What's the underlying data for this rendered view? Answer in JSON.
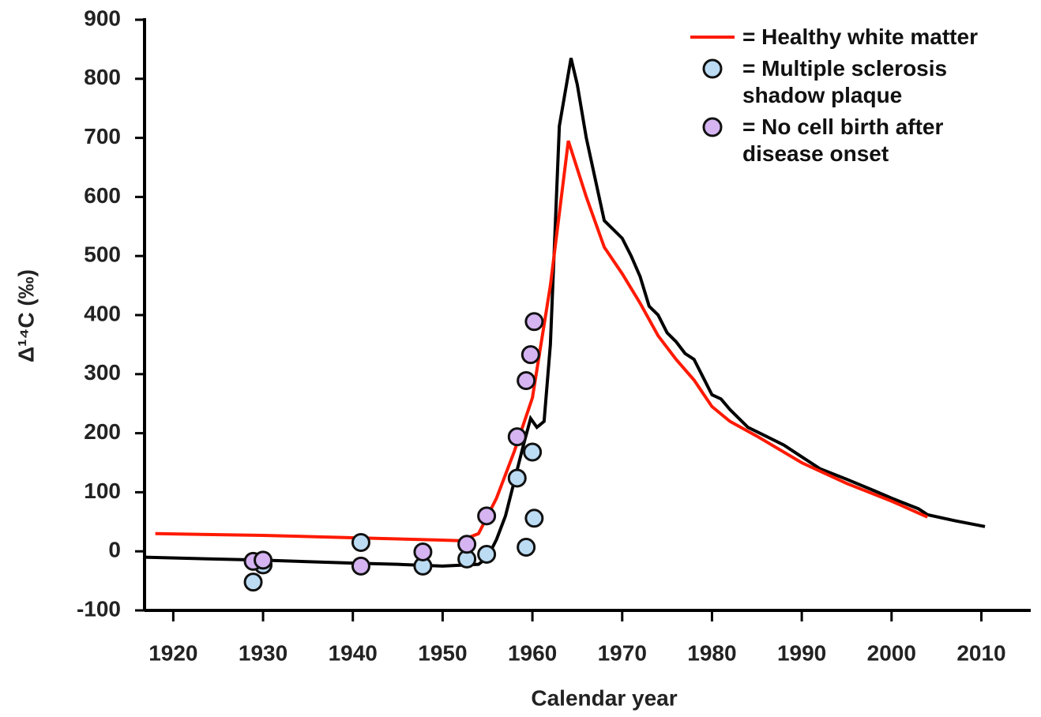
{
  "chart_data": {
    "type": "line",
    "xlabel": "Calendar year",
    "ylabel": "Δ¹⁴C (‰)",
    "xlim": [
      1916.8,
      2015.5
    ],
    "ylim": [
      -100,
      900
    ],
    "xticks": [
      1920,
      1930,
      1940,
      1950,
      1960,
      1970,
      1980,
      1990,
      2000,
      2010
    ],
    "yticks": [
      -100,
      0,
      100,
      200,
      300,
      400,
      500,
      600,
      700,
      800,
      900
    ],
    "grid": false,
    "legend": "top-right",
    "series": [
      {
        "mark": "line",
        "color": "#000000",
        "x": [
          1916.8,
          1930,
          1940,
          1945,
          1950,
          1954,
          1955,
          1956,
          1957,
          1958,
          1959,
          1959.8,
          1960.5,
          1961.3,
          1962,
          1963,
          1964.3,
          1965,
          1966,
          1968,
          1970,
          1971,
          1972,
          1973,
          1974,
          1975,
          1976,
          1977,
          1978,
          1979,
          1980,
          1981,
          1982,
          1984,
          1986,
          1988,
          1990,
          1992,
          1995,
          1998,
          2000,
          2003,
          2004,
          2007,
          2010.4
        ],
        "values": [
          -10,
          -15,
          -20,
          -22,
          -25,
          -22,
          -10,
          20,
          60,
          120,
          180,
          225,
          210,
          220,
          350,
          720,
          835,
          790,
          700,
          560,
          530,
          500,
          465,
          415,
          400,
          370,
          355,
          335,
          325,
          295,
          265,
          258,
          240,
          210,
          195,
          180,
          160,
          140,
          122,
          103,
          90,
          72,
          62,
          52,
          42
        ]
      },
      {
        "name": "= Healthy white matter",
        "mark": "line",
        "color": "#ff1a00",
        "x": [
          1918,
          1930,
          1940,
          1950,
          1952,
          1954,
          1956,
          1958,
          1960,
          1962,
          1964,
          1966,
          1968,
          1970,
          1972,
          1974,
          1976,
          1978,
          1980,
          1982,
          1985,
          1990,
          1995,
          2000,
          2004
        ],
        "values": [
          30,
          27,
          23,
          19,
          18,
          30,
          90,
          170,
          260,
          450,
          695,
          600,
          515,
          470,
          420,
          365,
          325,
          290,
          245,
          220,
          195,
          150,
          115,
          85,
          58
        ]
      },
      {
        "name": "= Multiple sclerosis shadow plaque",
        "mark": "scatter",
        "color": "#bcdcf4",
        "x": [
          1928.9,
          1930,
          1940.9,
          1947.8,
          1952.7,
          1954.9,
          1958.3,
          1960,
          1959.3,
          1960.2
        ],
        "values": [
          -52,
          -23,
          15,
          -25,
          -13,
          -5,
          124,
          168,
          7,
          56
        ]
      },
      {
        "name": "= No cell birth after disease onset",
        "mark": "scatter",
        "color": "#d6b4f2",
        "x": [
          1928.9,
          1930,
          1940.9,
          1947.8,
          1952.7,
          1954.9,
          1958.3,
          1959.3,
          1959.8,
          1960.2
        ],
        "values": [
          -17,
          -15,
          -25,
          -1,
          12,
          60,
          194,
          289,
          333,
          389
        ]
      }
    ]
  }
}
